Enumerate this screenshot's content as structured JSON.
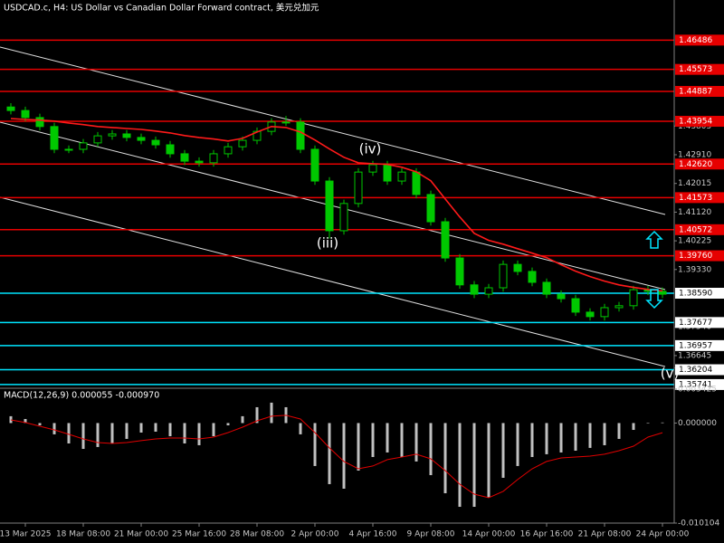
{
  "chart_data": [
    {
      "type": "candlestick",
      "title": "USDCAD.c, H4:  US Dollar vs Canadian Dollar Forward contract, 美元兑加元",
      "categories": [
        null,
        "13 Mar 2025",
        null,
        null,
        null,
        "18 Mar 08:00",
        null,
        null,
        null,
        "21 Mar 00:00",
        null,
        null,
        null,
        "25 Mar 16:00",
        null,
        null,
        null,
        "28 Mar 08:00",
        null,
        null,
        null,
        "2 Apr 00:00",
        null,
        null,
        null,
        "4 Apr 16:00",
        null,
        null,
        null,
        "9 Apr 08:00",
        null,
        null,
        null,
        "14 Apr 00:00",
        null,
        null,
        null,
        "16 Apr 16:00",
        null,
        null,
        null,
        "21 Apr 08:00",
        null,
        null,
        null,
        "24 Apr 00:00"
      ],
      "open": [
        1.444,
        1.4429,
        1.4407,
        1.4379,
        1.4308,
        1.4308,
        1.4328,
        1.435,
        1.4356,
        1.4345,
        1.4336,
        1.4322,
        1.4294,
        1.4271,
        1.4266,
        1.4294,
        1.4316,
        1.4336,
        1.4364,
        1.4393,
        1.4393,
        1.4308,
        1.4209,
        1.4054,
        1.4139,
        1.4237,
        1.426,
        1.4209,
        1.4237,
        1.4167,
        1.4082,
        1.3969,
        1.3885,
        1.3856,
        1.3876,
        1.3949,
        1.3927,
        1.3893,
        1.3856,
        1.3842,
        1.38,
        1.3786,
        1.3814,
        1.382,
        1.387,
        1.3865
      ],
      "high": [
        1.4452,
        1.4441,
        1.4419,
        1.4391,
        1.432,
        1.434,
        1.4362,
        1.4368,
        1.4368,
        1.4357,
        1.4348,
        1.4334,
        1.4306,
        1.4283,
        1.4306,
        1.4328,
        1.4348,
        1.4376,
        1.4405,
        1.4412,
        1.4405,
        1.432,
        1.4221,
        1.4151,
        1.4249,
        1.4272,
        1.4272,
        1.4249,
        1.4249,
        1.4179,
        1.4094,
        1.3981,
        1.3897,
        1.3888,
        1.3961,
        1.3961,
        1.3939,
        1.3905,
        1.3868,
        1.3854,
        1.3812,
        1.3826,
        1.3832,
        1.3882,
        1.3882,
        1.3877
      ],
      "low": [
        1.4417,
        1.4395,
        1.4367,
        1.4296,
        1.4296,
        1.4296,
        1.4316,
        1.4338,
        1.4333,
        1.4324,
        1.431,
        1.4282,
        1.4259,
        1.4254,
        1.4254,
        1.4282,
        1.4304,
        1.4324,
        1.4352,
        1.4381,
        1.4296,
        1.4197,
        1.403,
        1.4042,
        1.4127,
        1.4225,
        1.4197,
        1.4197,
        1.4155,
        1.407,
        1.3957,
        1.3873,
        1.3844,
        1.3844,
        1.3864,
        1.3915,
        1.3881,
        1.3844,
        1.383,
        1.3788,
        1.3774,
        1.3774,
        1.3802,
        1.3808,
        1.3853,
        1.3844
      ],
      "close": [
        1.4429,
        1.4407,
        1.4379,
        1.4308,
        1.4308,
        1.4328,
        1.435,
        1.4356,
        1.4345,
        1.4336,
        1.4322,
        1.4294,
        1.4271,
        1.4266,
        1.4294,
        1.4316,
        1.4336,
        1.4364,
        1.4393,
        1.4393,
        1.4308,
        1.4209,
        1.4054,
        1.4139,
        1.4237,
        1.426,
        1.4209,
        1.4237,
        1.4167,
        1.4082,
        1.3969,
        1.3885,
        1.3856,
        1.3876,
        1.3949,
        1.3927,
        1.3893,
        1.3856,
        1.3842,
        1.38,
        1.3786,
        1.3814,
        1.382,
        1.387,
        1.3865,
        1.3856
      ],
      "color": "#00c800",
      "moving_average": {
        "color": "#ff1a1a",
        "values": [
          1.4404,
          1.4401,
          1.4399,
          1.4396,
          1.439,
          1.4385,
          1.4379,
          1.4376,
          1.4373,
          1.437,
          1.4365,
          1.4359,
          1.4351,
          1.4345,
          1.434,
          1.4334,
          1.4342,
          1.4362,
          1.4379,
          1.4376,
          1.4362,
          1.4337,
          1.4309,
          1.4283,
          1.4266,
          1.4263,
          1.4261,
          1.4252,
          1.4238,
          1.421,
          1.4153,
          1.4097,
          1.4046,
          1.4024,
          1.4012,
          1.3998,
          1.3984,
          1.397,
          1.3948,
          1.3928,
          1.3911,
          1.3897,
          1.3885,
          1.3877,
          1.3871,
          1.3866
        ]
      },
      "resistance_levels": {
        "color": "#e60000",
        "values": [
          1.46486,
          1.45573,
          1.44887,
          1.43954,
          1.4262,
          1.41573,
          1.40572,
          1.3976
        ],
        "value_labels": [
          "1.46486",
          "1.45573",
          "1.44887",
          "1.43954",
          "1.42620",
          "1.41573",
          "1.40572",
          "1.39760"
        ]
      },
      "support_levels": {
        "color": "#00e5ff",
        "values": [
          1.3859,
          1.37677,
          1.36957,
          1.36204,
          1.35741
        ],
        "value_labels": [
          "1.38590",
          "1.37677",
          "1.36957",
          "1.36204",
          "1.35741"
        ]
      },
      "annotations": [
        "(iii)",
        "(iv)",
        "(v)"
      ],
      "ylim": [
        1.35654,
        1.47738
      ],
      "yticks": [
        1.43805,
        {
          "value": 1.4291,
          "label": "1.42910"
        },
        1.42015,
        {
          "value": 1.4112,
          "label": "1.41120"
        },
        1.40225,
        {
          "value": 1.3933,
          "label": "1.39330"
        },
        {
          "value": 1.3754,
          "label": "1.37540"
        },
        1.36645
      ],
      "grid": false
    },
    {
      "type": "macd",
      "title": "MACD(12,26,9) 0.000055 -0.000970",
      "color": "#c0c0c0",
      "values": [
        0.00069,
        0.00041,
        -0.00023,
        -0.00114,
        -0.00206,
        -0.00261,
        -0.00242,
        -0.00206,
        -0.0016,
        -0.00096,
        -0.00087,
        -0.00133,
        -0.00206,
        -0.00224,
        -0.00133,
        -0.00023,
        0.00069,
        0.0016,
        0.00206,
        0.0016,
        -0.00114,
        -0.00434,
        -0.00617,
        -0.00663,
        -0.0048,
        -0.00343,
        -0.00297,
        -0.00343,
        -0.00388,
        -0.00526,
        -0.00709,
        -0.00846,
        -0.00846,
        -0.00754,
        -0.00553,
        -0.00434,
        -0.00343,
        -0.00315,
        -0.00297,
        -0.00279,
        -0.00251,
        -0.00224,
        -0.0016,
        -0.00069,
        -5e-05,
        5.5e-05
      ],
      "signal": {
        "color": "#e00000",
        "values": [
          0.00032,
          5e-05,
          -0.00032,
          -0.00069,
          -0.00114,
          -0.0016,
          -0.00197,
          -0.00206,
          -0.00197,
          -0.00178,
          -0.0016,
          -0.00151,
          -0.00151,
          -0.0016,
          -0.00142,
          -0.00096,
          -0.00041,
          0.00023,
          0.00069,
          0.00078,
          0.00041,
          -0.00096,
          -0.00251,
          -0.00388,
          -0.00462,
          -0.00434,
          -0.0037,
          -0.00343,
          -0.00315,
          -0.00361,
          -0.0048,
          -0.00617,
          -0.00718,
          -0.00754,
          -0.0069,
          -0.00571,
          -0.00462,
          -0.00388,
          -0.00352,
          -0.00343,
          -0.00334,
          -0.00315,
          -0.00279,
          -0.00233,
          -0.00142,
          -0.00097
        ]
      },
      "ylim": [
        -0.010104,
        0.003425
      ],
      "yticks": [
        0.003425,
        {
          "value": 0,
          "label": "0.000000"
        },
        -0.010104
      ]
    }
  ]
}
